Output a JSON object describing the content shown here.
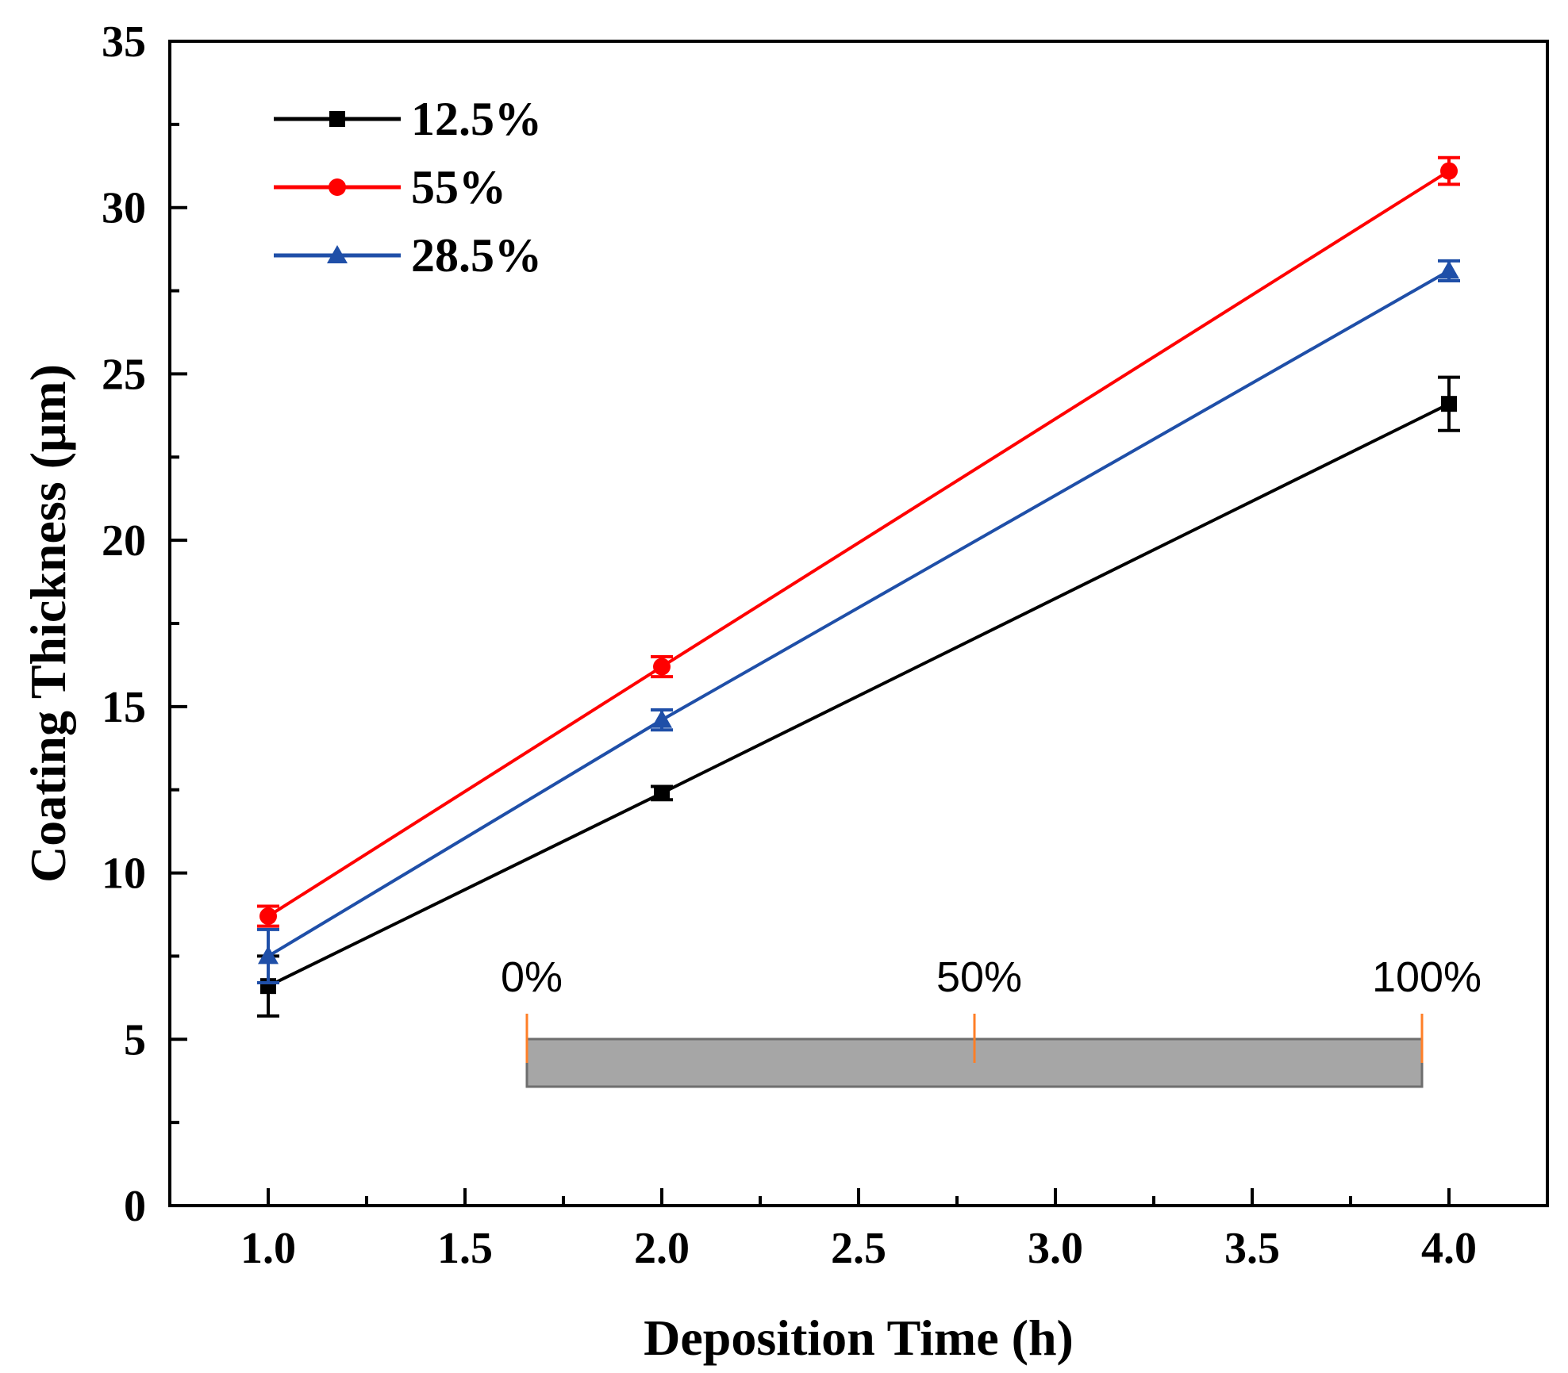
{
  "chart_data": {
    "type": "line",
    "title": "",
    "xlabel": "Deposition Time (h)",
    "ylabel": "Coating Thickness (μm)",
    "xlim": [
      0.75,
      4.25
    ],
    "ylim": [
      0,
      35
    ],
    "x_ticks": [
      "1.0",
      "1.5",
      "2.0",
      "2.5",
      "3.0",
      "3.5",
      "4.0"
    ],
    "y_ticks": [
      "0",
      "5",
      "10",
      "15",
      "20",
      "25",
      "30",
      "35"
    ],
    "grid": false,
    "legend_position": "top-left",
    "series": [
      {
        "name": "12.5%",
        "color": "#000000",
        "marker": "square",
        "x": [
          1.0,
          2.0,
          4.0
        ],
        "y": [
          6.6,
          12.4,
          24.1
        ],
        "err": [
          0.9,
          0.2,
          0.8
        ]
      },
      {
        "name": "55%",
        "color": "#ff0000",
        "marker": "circle",
        "x": [
          1.0,
          2.0,
          4.0
        ],
        "y": [
          8.7,
          16.2,
          31.1
        ],
        "err": [
          0.3,
          0.3,
          0.4
        ]
      },
      {
        "name": "28.5%",
        "color": "#1f4fa8",
        "marker": "triangle",
        "x": [
          1.0,
          2.0,
          4.0
        ],
        "y": [
          7.5,
          14.6,
          28.1
        ],
        "err": [
          0.8,
          0.3,
          0.3
        ]
      }
    ],
    "inset": {
      "labels": [
        "0%",
        "50%",
        "100%"
      ],
      "bar_color": "#a6a6a6",
      "marker_color": "#ff7f27"
    }
  }
}
